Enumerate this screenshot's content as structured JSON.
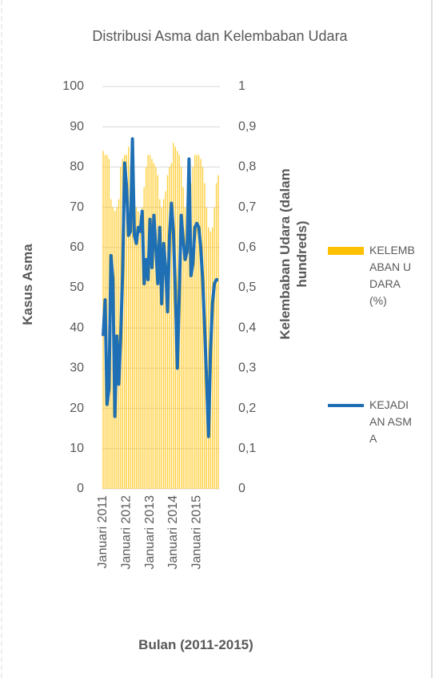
{
  "chart_data": {
    "type": "bar-line",
    "title": "Distribusi Asma dan Kelembaban Udara",
    "x_label": "Bulan (2011-2015)",
    "y_label": "Kasus Asma",
    "y2_label": "Kelembaban Udara (dalam hundreds)",
    "categories": [
      "Januari 2011",
      null,
      null,
      null,
      null,
      null,
      null,
      null,
      null,
      null,
      null,
      null,
      "Januari 2012",
      null,
      null,
      null,
      null,
      null,
      null,
      null,
      null,
      null,
      null,
      null,
      "Januari 2013",
      null,
      null,
      null,
      null,
      null,
      null,
      null,
      null,
      null,
      null,
      null,
      "Januari 2014",
      null,
      null,
      null,
      null,
      null,
      null,
      null,
      null,
      null,
      null,
      null,
      "Januari 2015",
      null,
      null,
      null,
      null,
      null,
      null,
      null,
      null,
      null,
      null,
      null
    ],
    "series": [
      {
        "name": "KELEMBABAN UDARA (%)",
        "type": "bar",
        "axis": "y2",
        "color": "#ffc000",
        "values": [
          0.84,
          0.83,
          0.83,
          0.82,
          0.72,
          0.7,
          0.69,
          0.7,
          0.72,
          0.8,
          0.82,
          0.83,
          0.83,
          0.85,
          0.8,
          0.78,
          0.75,
          0.7,
          0.69,
          0.68,
          0.7,
          0.75,
          0.8,
          0.83,
          0.83,
          0.82,
          0.81,
          0.8,
          0.78,
          0.72,
          0.7,
          0.72,
          0.74,
          0.78,
          0.8,
          0.81,
          0.86,
          0.85,
          0.84,
          0.83,
          0.8,
          0.75,
          0.7,
          0.71,
          0.72,
          0.76,
          0.8,
          0.83,
          0.83,
          0.83,
          0.82,
          0.8,
          0.76,
          0.7,
          0.65,
          0.64,
          0.65,
          0.7,
          0.76,
          0.78
        ]
      },
      {
        "name": "KEJADIAN ASMA",
        "type": "line",
        "color": "#1f6fb4",
        "values": [
          38,
          47,
          21,
          25,
          58,
          52,
          18,
          38,
          26,
          38,
          54,
          81,
          75,
          63,
          64,
          87,
          63,
          61,
          65,
          64,
          69,
          51,
          57,
          52,
          67,
          55,
          68,
          60,
          51,
          65,
          46,
          61,
          55,
          44,
          63,
          71,
          64,
          49,
          30,
          48,
          68,
          62,
          57,
          59,
          82,
          53,
          56,
          65,
          66,
          65,
          60,
          52,
          40,
          27,
          13,
          34,
          46,
          51,
          52,
          52
        ]
      }
    ],
    "ylim": [
      0,
      100
    ],
    "yticks": [
      0,
      10,
      20,
      30,
      40,
      50,
      60,
      70,
      80,
      90,
      100
    ],
    "y2lim": [
      0,
      1
    ],
    "y2ticks": [
      0,
      {
        "value": 0.1,
        "label": "0,1"
      },
      {
        "value": 0.2,
        "label": "0,2"
      },
      {
        "value": 0.3,
        "label": "0,3"
      },
      {
        "value": 0.4,
        "label": "0,4"
      },
      {
        "value": 0.5,
        "label": "0,5"
      },
      {
        "value": 0.6,
        "label": "0,6"
      },
      {
        "value": 0.7,
        "label": "0,7"
      },
      {
        "value": 0.8,
        "label": "0,8"
      },
      {
        "value": 0.9,
        "label": "0,9"
      },
      1
    ],
    "grid": true
  }
}
